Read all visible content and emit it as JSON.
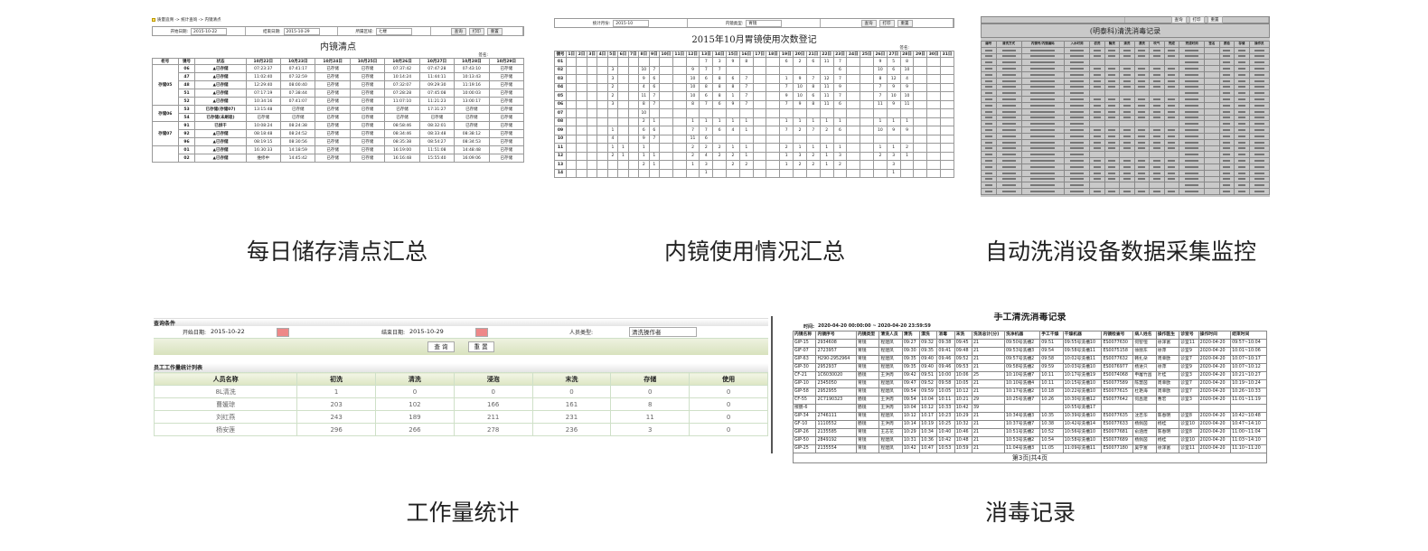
{
  "captions": [
    "每日储存清点汇总",
    "内镜使用情况汇总",
    "自动洗消设备数据采集监控",
    "工作量统计",
    "消毒记录"
  ],
  "colors": {
    "accent_green": "#dde6c3",
    "panel3_bg": "#c9c9c9"
  },
  "p1": {
    "breadcrumb": "质量追溯 -> 统计查询 -> 内镜清点",
    "start_label": "开始日期:",
    "start": "2015-10-22",
    "end_label": "结束日期:",
    "end": "2015-10-29",
    "area_label": "所属区域:",
    "area": "七楼",
    "query": "查询",
    "print": "打印",
    "reset": "重置",
    "title": "内镜清点",
    "sign": "签名:",
    "headers": [
      "柜号",
      "镜号",
      "状态",
      "10月22日",
      "10月23日",
      "10月24日",
      "10月25日",
      "10月26日",
      "10月27日",
      "10月28日",
      "10月29日"
    ],
    "groups": [
      {
        "cab": "存储05",
        "rows": [
          [
            "06",
            "▲已存储",
            "07:23:37",
            "07:41:17",
            "已存储",
            "已存储",
            "07:37:42",
            "07:47:28",
            "07:43:10",
            "已存储"
          ],
          [
            "47",
            "▲已存储",
            "11:02:40",
            "07:32:59",
            "已存储",
            "已存储",
            "10:14:24",
            "11:44:11",
            "10:13:43",
            "已存储"
          ],
          [
            "48",
            "▲已存储",
            "12:29:40",
            "08:00:40",
            "已存储",
            "已存储",
            "07:32:07",
            "09:29:30",
            "11:19:16",
            "已存储"
          ],
          [
            "51",
            "▲已存储",
            "07:17:19",
            "07:38:44",
            "已存储",
            "已存储",
            "07:28:28",
            "07:45:08",
            "10:00:03",
            "已存储"
          ],
          [
            "52",
            "▲已存储",
            "10:34:16",
            "07:41:07",
            "已存储",
            "已存储",
            "11:07:10",
            "11:21:23",
            "13:00:17",
            "已存储"
          ]
        ]
      },
      {
        "cab": "存储06",
        "rows": [
          [
            "53",
            "已存储(存储07)",
            "13:15:48",
            "已存储",
            "已存储",
            "已存储",
            "已存储",
            "17:31:27",
            "已存储",
            "已存储"
          ],
          [
            "54",
            "已存储(未刷吸)",
            "已存储",
            "已存储",
            "已存储",
            "已存储",
            "已存储",
            "已存储",
            "已存储",
            "已存储"
          ]
        ]
      },
      {
        "cab": "存储07",
        "rows": [
          [
            "91",
            "已烘干",
            "10:08:24",
            "08:24:38",
            "已存储",
            "已存储",
            "08:58:46",
            "08:32:01",
            "已存储",
            "已存储"
          ],
          [
            "92",
            "▲已存储",
            "08:18:48",
            "08:24:52",
            "已存储",
            "已存储",
            "08:34:46",
            "08:33:48",
            "08:38:12",
            "已存储"
          ],
          [
            "96",
            "▲已存储",
            "08:19:15",
            "08:30:56",
            "已存储",
            "已存储",
            "08:35:38",
            "08:54:27",
            "08:34:53",
            "已存储"
          ]
        ]
      },
      {
        "cab": "",
        "rows": [
          [
            "01",
            "▲已存储",
            "16:30:33",
            "14:18:59",
            "已存储",
            "已存储",
            "16:19:00",
            "11:51:08",
            "14:48:48",
            "已存储"
          ],
          [
            "02",
            "▲已存储",
            "维修中",
            "14:45:42",
            "已存储",
            "已存储",
            "16:16:48",
            "15:55:40",
            "16:09:06",
            "已存储"
          ]
        ]
      }
    ]
  },
  "p2": {
    "month_label": "统计月份:",
    "month": "2015-10",
    "type_label": "内镜类型:",
    "type": "胃镜",
    "query": "查询",
    "print": "打印",
    "reset": "重置",
    "title": "2015年10月胃镜使用次数登记",
    "sign": "签名:",
    "id_header": "镜号",
    "rows": [
      {
        "id": "01",
        "cells": {
          "13": "7",
          "14": "3",
          "15": "9",
          "16": "8",
          "19": "6",
          "20": "2",
          "21": "6",
          "22": "11",
          "23": "7",
          "26": "9",
          "27": "5",
          "28": "8"
        }
      },
      {
        "id": "02",
        "cells": {
          "5": "3",
          "8": "10",
          "9": "7",
          "12": "9",
          "13": "7",
          "14": "7",
          "23": "6",
          "26": "10",
          "27": "6",
          "28": "10"
        }
      },
      {
        "id": "03",
        "cells": {
          "5": "3",
          "8": "9",
          "9": "6",
          "12": "10",
          "13": "6",
          "14": "8",
          "15": "6",
          "16": "7",
          "19": "1",
          "20": "9",
          "21": "7",
          "22": "12",
          "23": "7",
          "26": "8",
          "27": "12",
          "28": "4"
        }
      },
      {
        "id": "04",
        "cells": {
          "5": "2",
          "8": "4",
          "9": "6",
          "12": "10",
          "13": "8",
          "14": "8",
          "15": "8",
          "16": "7",
          "19": "7",
          "20": "10",
          "21": "8",
          "22": "11",
          "23": "9",
          "26": "7",
          "27": "9",
          "28": "9"
        }
      },
      {
        "id": "05",
        "cells": {
          "5": "2",
          "8": "11",
          "9": "7",
          "12": "10",
          "13": "6",
          "14": "8",
          "15": "1",
          "16": "7",
          "19": "9",
          "20": "10",
          "21": "6",
          "22": "11",
          "23": "7",
          "26": "7",
          "27": "10",
          "28": "10"
        }
      },
      {
        "id": "06",
        "cells": {
          "5": "3",
          "8": "8",
          "9": "7",
          "12": "8",
          "13": "7",
          "14": "6",
          "15": "9",
          "16": "7",
          "19": "7",
          "20": "9",
          "21": "8",
          "22": "11",
          "23": "6",
          "26": "11",
          "27": "9",
          "28": "11"
        }
      },
      {
        "id": "07",
        "cells": {
          "8": "10"
        }
      },
      {
        "id": "08",
        "cells": {
          "8": "2",
          "9": "1",
          "12": "1",
          "13": "1",
          "14": "1",
          "15": "1",
          "16": "1",
          "19": "1",
          "20": "1",
          "21": "1",
          "22": "1",
          "23": "1",
          "26": "1",
          "27": "1",
          "28": "1"
        }
      },
      {
        "id": "09",
        "cells": {
          "5": "1",
          "8": "6",
          "9": "6",
          "12": "7",
          "13": "7",
          "14": "6",
          "15": "4",
          "16": "1",
          "19": "7",
          "20": "2",
          "21": "7",
          "22": "2",
          "23": "6",
          "26": "10",
          "27": "9",
          "28": "9"
        }
      },
      {
        "id": "10",
        "cells": {
          "5": "4",
          "8": "9",
          "9": "7",
          "12": "11",
          "13": "6"
        }
      },
      {
        "id": "11",
        "cells": {
          "5": "1",
          "6": "1",
          "8": "1",
          "12": "2",
          "13": "2",
          "14": "2",
          "15": "1",
          "16": "1",
          "19": "2",
          "20": "1",
          "21": "1",
          "22": "1",
          "23": "1",
          "26": "1",
          "27": "1",
          "28": "2"
        }
      },
      {
        "id": "12",
        "cells": {
          "5": "2",
          "6": "1",
          "8": "1",
          "9": "1",
          "12": "2",
          "13": "4",
          "14": "2",
          "15": "2",
          "16": "1",
          "19": "1",
          "20": "3",
          "21": "2",
          "22": "1",
          "23": "3",
          "26": "2",
          "27": "3",
          "28": "1"
        }
      },
      {
        "id": "13",
        "cells": {
          "8": "2",
          "9": "1",
          "12": "1",
          "13": "3",
          "15": "2",
          "16": "2",
          "19": "1",
          "20": "2",
          "21": "2",
          "22": "1",
          "23": "2",
          "27": "3"
        }
      },
      {
        "id": "14",
        "cells": {
          "13": "1",
          "27": "1"
        }
      }
    ]
  },
  "p3": {
    "title": "(明泰科)清洗消毒记录",
    "query": "查询",
    "print": "打印",
    "reset": "重置",
    "headers": [
      "编号",
      "清洗方式",
      "内镜号/内镜编码",
      "入水时间",
      "初洗",
      "酶洗",
      "清洗",
      "漂洗",
      "吹气",
      "完成",
      "完成时间",
      "签名",
      "质检",
      "存储",
      "操作员"
    ]
  },
  "p4": {
    "section": "查询条件",
    "start_label": "开始日期:",
    "start": "2015-10-22",
    "end_label": "结束日期:",
    "end": "2015-10-29",
    "type_label": "人员类型:",
    "type": "清洗操作者",
    "query": "查 询",
    "reset": "重 置",
    "list_title": "员工工作量统计列表",
    "headers": [
      "人员名称",
      "初洗",
      "清洗",
      "浸泡",
      "末洗",
      "存储",
      "使用"
    ],
    "rows": [
      [
        "8L清洗",
        "1",
        "0",
        "0",
        "0",
        "0",
        "0"
      ],
      [
        "曹媛琼",
        "203",
        "102",
        "166",
        "161",
        "8",
        "0"
      ],
      [
        "刘红燕",
        "243",
        "189",
        "211",
        "231",
        "11",
        "0"
      ],
      [
        "杨安莲",
        "296",
        "266",
        "278",
        "236",
        "3",
        "0"
      ]
    ]
  },
  "p5": {
    "title": "手工清洗消毒记录",
    "time_label": "时间:",
    "time": "2020-04-20 00:00:00 ~ 2020-04-20 23:59:59",
    "footer": "第3页|共4页",
    "headers": [
      "内镜名称",
      "内镜序号",
      "内镜类型",
      "清洗人员",
      "清洗",
      "漂洗",
      "消毒",
      "末洗",
      "洗消总计(分)",
      "洗净机器",
      "手工干燥",
      "干燥机器",
      "内镜检查号",
      "病人姓名",
      "操作医生",
      "诊室号",
      "操作时间",
      "结束时间"
    ],
    "rows": [
      [
        "GIP-15",
        "2934608",
        "胃镜",
        "程建凤",
        "09:27",
        "09:32",
        "09:38",
        "09:45",
        "21",
        "09:50号洗槽2",
        "09:51",
        "09:55号洗槽10",
        "ES0077630",
        "何智恒",
        "徐泽富",
        "诊室11",
        "2020-04-20",
        "09:57~10:04"
      ],
      [
        "GIF-07",
        "2723957",
        "胃镜",
        "程建凤",
        "09:30",
        "09:35",
        "09:41",
        "09:48",
        "21",
        "09:53号洗槽3",
        "09:54",
        "09:58号洗槽11",
        "ES0075158",
        "徐丽东",
        "徐萍",
        "诊室9",
        "2020-04-20",
        "10:01~10:06"
      ],
      [
        "GIP-63",
        "H290-2952964",
        "胃镜",
        "程建凤",
        "09:35",
        "09:40",
        "09:46",
        "09:52",
        "21",
        "09:57号洗槽2",
        "09:58",
        "10:02号洗槽11",
        "ES0077632",
        "韩扎朵",
        "周幸欧",
        "诊室7",
        "2020-04-20",
        "10:07~10:17"
      ],
      [
        "GIP-30",
        "2952937",
        "胃镜",
        "程建凤",
        "09:35",
        "09:40",
        "09:46",
        "09:53",
        "21",
        "09:58号洗槽2",
        "09:59",
        "10:03号洗槽10",
        "ES0076977",
        "杨进只",
        "徐萍",
        "诊室9",
        "2020-04-20",
        "10:07~10:12"
      ],
      [
        "CF-21",
        "1C6030020",
        "肠镜",
        "王洪周",
        "09:42",
        "09:51",
        "10:00",
        "10:06",
        "25",
        "10:10号洗槽7",
        "10:11",
        "10:17号洗槽19",
        "ES0074068",
        "申屠竹昌",
        "叶桂",
        "诊室3",
        "2020-04-20",
        "10:21~10:27"
      ],
      [
        "GIP-10",
        "2345050",
        "胃镜",
        "程建凤",
        "09:47",
        "09:52",
        "09:58",
        "10:05",
        "21",
        "10:10号洗槽4",
        "10:11",
        "10:15号洗槽10",
        "ES0077589",
        "陈慧茵",
        "周幸欧",
        "诊室7",
        "2020-04-20",
        "10:19~10:24"
      ],
      [
        "GIP-58",
        "2952955",
        "胃镜",
        "程建凤",
        "09:54",
        "09:59",
        "10:05",
        "10:12",
        "21",
        "10:17号洗槽2",
        "10:18",
        "10:22号洗槽10",
        "ES0077615",
        "杜艳海",
        "周幸欧",
        "诊室7",
        "2020-04-20",
        "10:26~10:33"
      ],
      [
        "CF-55",
        "2C7190323",
        "肠镜",
        "王洪周",
        "09:54",
        "10:04",
        "10:11",
        "10:21",
        "29",
        "10:25号洗槽7",
        "10:26",
        "10:30号洗槽12",
        "ES0077642",
        "何昌建",
        "曹宏",
        "诊室3",
        "2020-04-20",
        "11:01~11:19"
      ],
      [
        "擦肠-6",
        "",
        "肠镜",
        "王洪周",
        "10:04",
        "10:12",
        "10:33",
        "10:42",
        "39",
        "",
        "",
        "10:55号洗槽17",
        "",
        "",
        "",
        "",
        "",
        ""
      ],
      [
        "GIP-34",
        "2746111",
        "胃镜",
        "程建凤",
        "10:12",
        "10:17",
        "10:23",
        "10:29",
        "21",
        "10:34号洗槽3",
        "10:35",
        "10:39号洗槽10",
        "ES0077635",
        "沈忠华",
        "陈春明",
        "诊室8",
        "2020-04-20",
        "10:42~10:48"
      ],
      [
        "GF-10",
        "1110552",
        "肠镜",
        "王洪周",
        "10:14",
        "10:19",
        "10:25",
        "10:32",
        "21",
        "10:37号洗槽7",
        "10:38",
        "10:42号洗槽14",
        "ES0077633",
        "杨佩茵",
        "杨桂",
        "诊室10",
        "2020-04-20",
        "10:47~14:10"
      ],
      [
        "GIP-26",
        "2135585",
        "胃镜",
        "王志花",
        "10:29",
        "10:34",
        "10:40",
        "10:46",
        "21",
        "10:51号洗槽2",
        "10:52",
        "10:56号洗槽10",
        "ES0077681",
        "俞涵煌",
        "陈春明",
        "诊室8",
        "2020-04-20",
        "11:00~11:04"
      ],
      [
        "GIP-50",
        "2849192",
        "胃镜",
        "程建凤",
        "10:31",
        "10:36",
        "10:42",
        "10:48",
        "21",
        "10:53号洗槽2",
        "10:54",
        "10:58号洗槽10",
        "ES0077689",
        "杨佩茵",
        "杨桂",
        "诊室10",
        "2020-04-20",
        "11:03~14:10"
      ],
      [
        "GIP-25",
        "2135554",
        "胃镜",
        "程建凤",
        "10:42",
        "10:47",
        "10:53",
        "10:59",
        "21",
        "11:04号洗槽3",
        "11:05",
        "11:09号洗槽11",
        "ES0077180",
        "吴学富",
        "徐泽富",
        "诊室11",
        "2020-04-20",
        "11:10~11:20"
      ]
    ]
  }
}
